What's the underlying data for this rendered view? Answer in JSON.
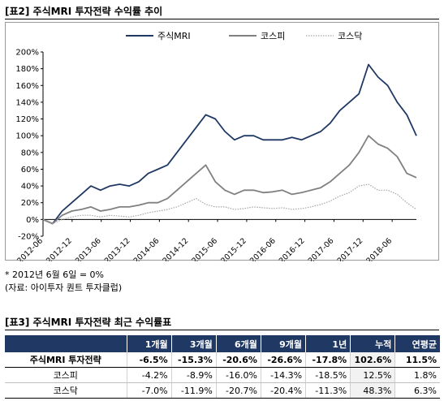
{
  "fig2": {
    "title": "[표2] 주식MRI 투자전략 수익률 추이",
    "note_base": "* 2012년 6월 6일 = 0%",
    "note_source": "(자료: 아이투자 퀀트 투자클럽)"
  },
  "chart_data": {
    "type": "line",
    "title": "",
    "xlabel": "",
    "ylabel": "",
    "ylim": [
      -20,
      200
    ],
    "yticks": [
      "200%",
      "180%",
      "160%",
      "140%",
      "120%",
      "100%",
      "80%",
      "60%",
      "40%",
      "20%",
      "0%",
      "-20%"
    ],
    "ytick_values": [
      200,
      180,
      160,
      140,
      120,
      100,
      80,
      60,
      40,
      20,
      0,
      -20
    ],
    "xticks": [
      "2012-06",
      "2012-12",
      "2013-06",
      "2013-12",
      "2014-06",
      "2014-12",
      "2015-06",
      "2015-12",
      "2016-06",
      "2016-12",
      "2017-06",
      "2017-12",
      "2018-06"
    ],
    "x": [
      "2012-06",
      "2012-08",
      "2012-10",
      "2012-12",
      "2013-02",
      "2013-04",
      "2013-06",
      "2013-08",
      "2013-10",
      "2013-12",
      "2014-02",
      "2014-04",
      "2014-06",
      "2014-08",
      "2014-10",
      "2014-12",
      "2015-02",
      "2015-04",
      "2015-06",
      "2015-08",
      "2015-10",
      "2015-12",
      "2016-02",
      "2016-04",
      "2016-06",
      "2016-08",
      "2016-10",
      "2016-12",
      "2017-02",
      "2017-04",
      "2017-06",
      "2017-08",
      "2017-10",
      "2017-12",
      "2018-02",
      "2018-04",
      "2018-06",
      "2018-08",
      "2018-10",
      "2018-11"
    ],
    "legend_position": "top",
    "grid": false,
    "series": [
      {
        "name": "주식MRI",
        "color": "#1f3864",
        "style": "solid",
        "values": [
          0,
          -5,
          10,
          20,
          30,
          40,
          35,
          40,
          42,
          40,
          45,
          55,
          60,
          65,
          80,
          95,
          110,
          125,
          120,
          105,
          95,
          100,
          100,
          95,
          95,
          95,
          98,
          95,
          100,
          105,
          115,
          130,
          140,
          150,
          185,
          170,
          160,
          140,
          125,
          100
        ]
      },
      {
        "name": "코스피",
        "color": "#808080",
        "style": "solid",
        "values": [
          0,
          -5,
          5,
          10,
          12,
          15,
          10,
          12,
          15,
          15,
          17,
          20,
          20,
          25,
          35,
          45,
          55,
          65,
          45,
          35,
          30,
          35,
          35,
          32,
          33,
          35,
          30,
          32,
          35,
          38,
          45,
          55,
          65,
          80,
          100,
          90,
          85,
          75,
          55,
          50
        ]
      },
      {
        "name": "코스닥",
        "color": "#a6a6a6",
        "style": "dotted",
        "values": [
          0,
          -5,
          0,
          3,
          5,
          5,
          3,
          5,
          4,
          3,
          5,
          8,
          10,
          12,
          15,
          20,
          25,
          18,
          15,
          15,
          12,
          13,
          15,
          14,
          13,
          14,
          12,
          13,
          15,
          18,
          22,
          28,
          32,
          40,
          42,
          35,
          35,
          30,
          20,
          12
        ]
      }
    ]
  },
  "fig3": {
    "title": "[표3] 주식MRI 투자전략 최근 수익률표",
    "columns": [
      "",
      "1개월",
      "3개월",
      "6개월",
      "9개월",
      "1년",
      "누적",
      "연평균"
    ],
    "rows": [
      {
        "label": "주식MRI 투자전략",
        "values": [
          "-6.5%",
          "-15.3%",
          "-20.6%",
          "-26.6%",
          "-17.8%",
          "102.6%",
          "11.5%"
        ]
      },
      {
        "label": "코스피",
        "values": [
          "-4.2%",
          "-8.9%",
          "-16.0%",
          "-14.3%",
          "-18.5%",
          "12.5%",
          "1.8%"
        ]
      },
      {
        "label": "코스닥",
        "values": [
          "-7.0%",
          "-11.9%",
          "-20.7%",
          "-20.4%",
          "-11.3%",
          "48.3%",
          "6.3%"
        ]
      }
    ]
  }
}
